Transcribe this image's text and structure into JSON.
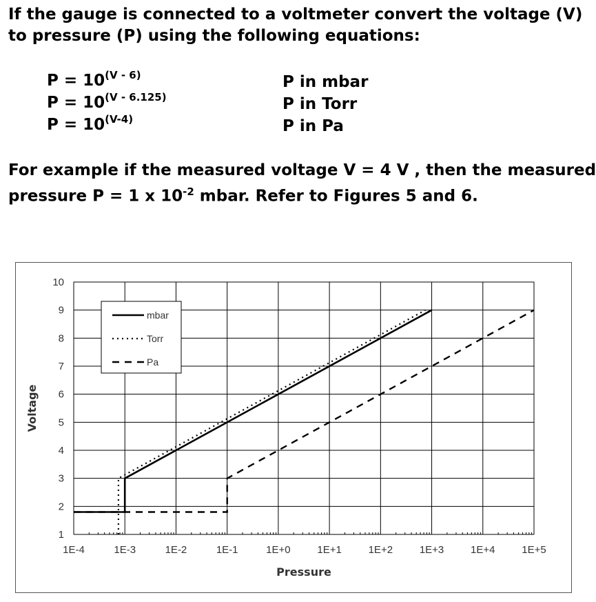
{
  "intro": {
    "line1": "If the gauge is connected to a voltmeter convert the voltage (V)",
    "line2": "to pressure (P) using the following equations:"
  },
  "equations": [
    {
      "base": "P = 10",
      "exp": "(V - 6)",
      "unit": "P in mbar"
    },
    {
      "base": "P = 10",
      "exp": "(V - 6.125)",
      "unit": "P in Torr"
    },
    {
      "base": "P = 10",
      "exp": "(V-4)",
      "unit": "P in Pa"
    }
  ],
  "example": {
    "line1": "For example if the measured voltage V = 4 V , then the measured",
    "line2_a": "pressure P = 1 x 10",
    "line2_exp": "-2",
    "line2_b": " mbar.  Refer to Figures 5 and 6."
  },
  "chart_data": {
    "type": "line",
    "xscale": "log10",
    "xlabel": "Pressure",
    "ylabel": "Voltage",
    "x_ticks": [
      "1E-4",
      "1E-3",
      "1E-2",
      "1E-1",
      "1E+0",
      "1E+1",
      "1E+2",
      "1E+3",
      "1E+4",
      "1E+5"
    ],
    "y_ticks": [
      "1",
      "2",
      "3",
      "4",
      "5",
      "6",
      "7",
      "8",
      "9",
      "10"
    ],
    "xlim_log10": [
      -4,
      5
    ],
    "ylim": [
      1,
      10
    ],
    "grid": true,
    "legend_position": "top-left",
    "series": [
      {
        "name": "mbar",
        "style": "solid",
        "points": [
          [
            -4,
            1.8
          ],
          [
            -3,
            1.8
          ],
          [
            -3,
            3
          ],
          [
            3,
            9
          ]
        ]
      },
      {
        "name": "Torr",
        "style": "dotted",
        "points": [
          [
            -3.125,
            1
          ],
          [
            -3.125,
            3
          ],
          [
            2.875,
            9
          ]
        ]
      },
      {
        "name": "Pa",
        "style": "dashed",
        "points": [
          [
            -4,
            1.8
          ],
          [
            -1,
            1.8
          ],
          [
            -1,
            3
          ],
          [
            5,
            9
          ]
        ]
      }
    ]
  }
}
